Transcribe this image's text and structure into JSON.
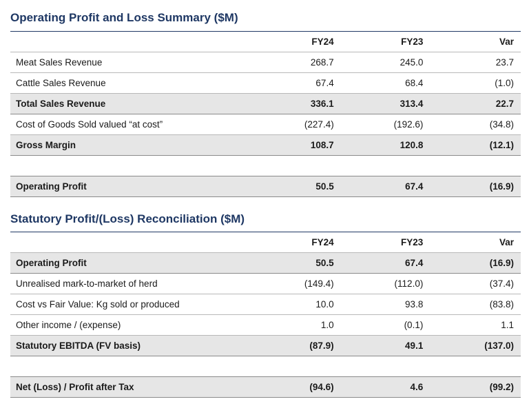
{
  "section1": {
    "title": "Operating Profit and Loss Summary ($M)",
    "headers": [
      "FY24",
      "FY23",
      "Var"
    ],
    "rows": [
      {
        "label": "Meat Sales Revenue",
        "fy24": "268.7",
        "fy23": "245.0",
        "var": "23.7"
      },
      {
        "label": "Cattle Sales Revenue",
        "fy24": "67.4",
        "fy23": "68.4",
        "var": "(1.0)"
      },
      {
        "label": "Total Sales Revenue",
        "fy24": "336.1",
        "fy23": "313.4",
        "var": "22.7"
      },
      {
        "label": "Cost of Goods Sold valued “at cost”",
        "fy24": "(227.4)",
        "fy23": "(192.6)",
        "var": "(34.8)"
      },
      {
        "label": "Gross Margin",
        "fy24": "108.7",
        "fy23": "120.8",
        "var": "(12.1)"
      }
    ],
    "operating": {
      "label": "Operating Profit",
      "fy24": "50.5",
      "fy23": "67.4",
      "var": "(16.9)"
    }
  },
  "section2": {
    "title": "Statutory Profit/(Loss) Reconciliation ($M)",
    "headers": [
      "FY24",
      "FY23",
      "Var"
    ],
    "rows": [
      {
        "label": "Operating Profit",
        "fy24": "50.5",
        "fy23": "67.4",
        "var": "(16.9)"
      },
      {
        "label": "Unrealised mark-to-market of herd",
        "fy24": "(149.4)",
        "fy23": "(112.0)",
        "var": "(37.4)"
      },
      {
        "label": "Cost vs Fair Value: Kg sold or produced",
        "fy24": "10.0",
        "fy23": "93.8",
        "var": "(83.8)"
      },
      {
        "label": "Other income / (expense)",
        "fy24": "1.0",
        "fy23": "(0.1)",
        "var": "1.1"
      },
      {
        "label": "Statutory EBITDA (FV basis)",
        "fy24": "(87.9)",
        "fy23": "49.1",
        "var": "(137.0)"
      }
    ],
    "net": {
      "label": "Net (Loss) / Profit after Tax",
      "fy24": "(94.6)",
      "fy23": "4.6",
      "var": "(99.2)"
    }
  }
}
